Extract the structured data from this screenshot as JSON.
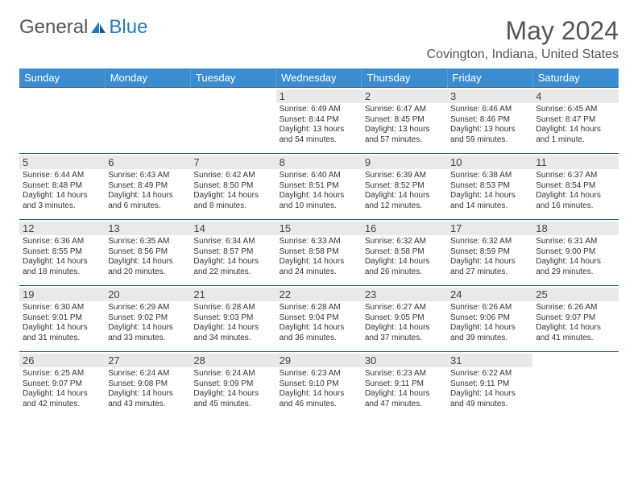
{
  "logo": {
    "general": "General",
    "blue": "Blue"
  },
  "title": "May 2024",
  "location": "Covington, Indiana, United States",
  "colors": {
    "header_bg": "#3b8dd0",
    "header_text": "#ffffff",
    "daynum_bg": "#e9e9e9",
    "border": "#2a5a8a",
    "text": "#333333",
    "title_text": "#555555"
  },
  "weekdays": [
    "Sunday",
    "Monday",
    "Tuesday",
    "Wednesday",
    "Thursday",
    "Friday",
    "Saturday"
  ],
  "weeks": [
    [
      null,
      null,
      null,
      {
        "d": "1",
        "sr": "6:49 AM",
        "ss": "8:44 PM",
        "dl": "13 hours and 54 minutes."
      },
      {
        "d": "2",
        "sr": "6:47 AM",
        "ss": "8:45 PM",
        "dl": "13 hours and 57 minutes."
      },
      {
        "d": "3",
        "sr": "6:46 AM",
        "ss": "8:46 PM",
        "dl": "13 hours and 59 minutes."
      },
      {
        "d": "4",
        "sr": "6:45 AM",
        "ss": "8:47 PM",
        "dl": "14 hours and 1 minute."
      }
    ],
    [
      {
        "d": "5",
        "sr": "6:44 AM",
        "ss": "8:48 PM",
        "dl": "14 hours and 3 minutes."
      },
      {
        "d": "6",
        "sr": "6:43 AM",
        "ss": "8:49 PM",
        "dl": "14 hours and 6 minutes."
      },
      {
        "d": "7",
        "sr": "6:42 AM",
        "ss": "8:50 PM",
        "dl": "14 hours and 8 minutes."
      },
      {
        "d": "8",
        "sr": "6:40 AM",
        "ss": "8:51 PM",
        "dl": "14 hours and 10 minutes."
      },
      {
        "d": "9",
        "sr": "6:39 AM",
        "ss": "8:52 PM",
        "dl": "14 hours and 12 minutes."
      },
      {
        "d": "10",
        "sr": "6:38 AM",
        "ss": "8:53 PM",
        "dl": "14 hours and 14 minutes."
      },
      {
        "d": "11",
        "sr": "6:37 AM",
        "ss": "8:54 PM",
        "dl": "14 hours and 16 minutes."
      }
    ],
    [
      {
        "d": "12",
        "sr": "6:36 AM",
        "ss": "8:55 PM",
        "dl": "14 hours and 18 minutes."
      },
      {
        "d": "13",
        "sr": "6:35 AM",
        "ss": "8:56 PM",
        "dl": "14 hours and 20 minutes."
      },
      {
        "d": "14",
        "sr": "6:34 AM",
        "ss": "8:57 PM",
        "dl": "14 hours and 22 minutes."
      },
      {
        "d": "15",
        "sr": "6:33 AM",
        "ss": "8:58 PM",
        "dl": "14 hours and 24 minutes."
      },
      {
        "d": "16",
        "sr": "6:32 AM",
        "ss": "8:58 PM",
        "dl": "14 hours and 26 minutes."
      },
      {
        "d": "17",
        "sr": "6:32 AM",
        "ss": "8:59 PM",
        "dl": "14 hours and 27 minutes."
      },
      {
        "d": "18",
        "sr": "6:31 AM",
        "ss": "9:00 PM",
        "dl": "14 hours and 29 minutes."
      }
    ],
    [
      {
        "d": "19",
        "sr": "6:30 AM",
        "ss": "9:01 PM",
        "dl": "14 hours and 31 minutes."
      },
      {
        "d": "20",
        "sr": "6:29 AM",
        "ss": "9:02 PM",
        "dl": "14 hours and 33 minutes."
      },
      {
        "d": "21",
        "sr": "6:28 AM",
        "ss": "9:03 PM",
        "dl": "14 hours and 34 minutes."
      },
      {
        "d": "22",
        "sr": "6:28 AM",
        "ss": "9:04 PM",
        "dl": "14 hours and 36 minutes."
      },
      {
        "d": "23",
        "sr": "6:27 AM",
        "ss": "9:05 PM",
        "dl": "14 hours and 37 minutes."
      },
      {
        "d": "24",
        "sr": "6:26 AM",
        "ss": "9:06 PM",
        "dl": "14 hours and 39 minutes."
      },
      {
        "d": "25",
        "sr": "6:26 AM",
        "ss": "9:07 PM",
        "dl": "14 hours and 41 minutes."
      }
    ],
    [
      {
        "d": "26",
        "sr": "6:25 AM",
        "ss": "9:07 PM",
        "dl": "14 hours and 42 minutes."
      },
      {
        "d": "27",
        "sr": "6:24 AM",
        "ss": "9:08 PM",
        "dl": "14 hours and 43 minutes."
      },
      {
        "d": "28",
        "sr": "6:24 AM",
        "ss": "9:09 PM",
        "dl": "14 hours and 45 minutes."
      },
      {
        "d": "29",
        "sr": "6:23 AM",
        "ss": "9:10 PM",
        "dl": "14 hours and 46 minutes."
      },
      {
        "d": "30",
        "sr": "6:23 AM",
        "ss": "9:11 PM",
        "dl": "14 hours and 47 minutes."
      },
      {
        "d": "31",
        "sr": "6:22 AM",
        "ss": "9:11 PM",
        "dl": "14 hours and 49 minutes."
      },
      null
    ]
  ],
  "labels": {
    "sunrise": "Sunrise:",
    "sunset": "Sunset:",
    "daylight": "Daylight:"
  }
}
